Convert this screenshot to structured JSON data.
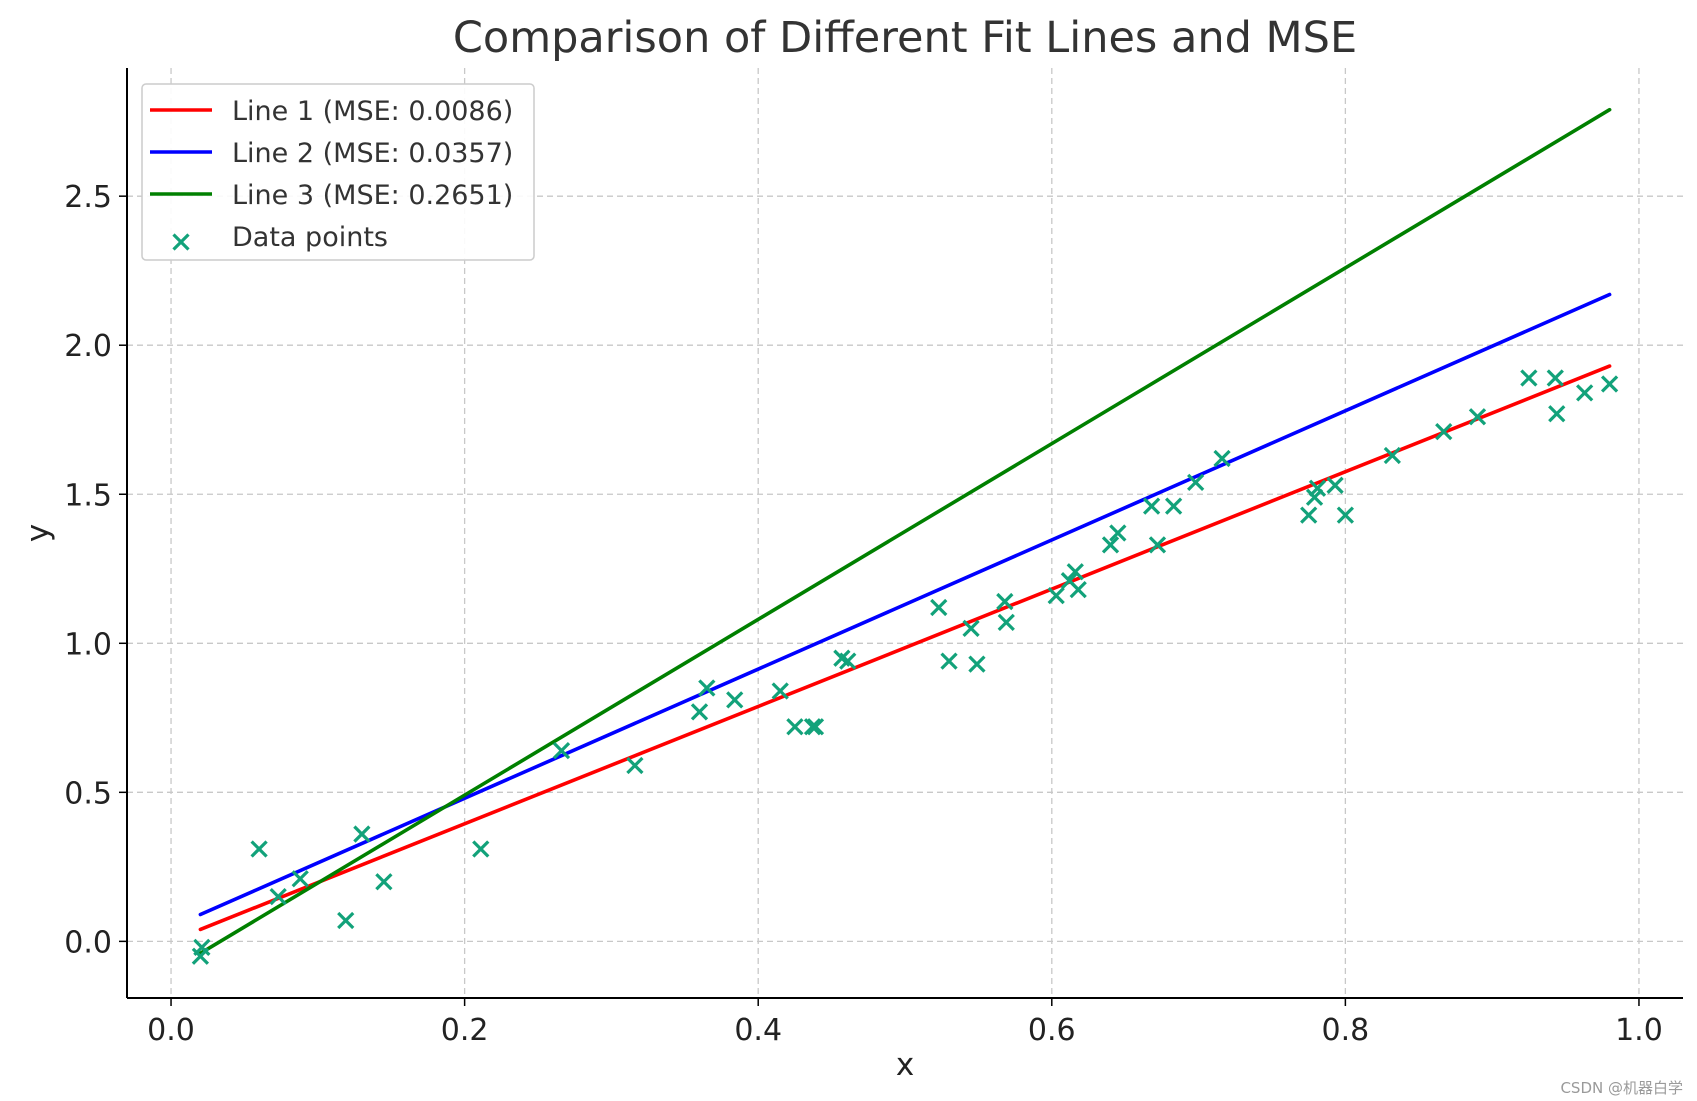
{
  "chart_data": {
    "type": "scatter",
    "title": "Comparison of Different Fit Lines and MSE",
    "xlabel": "x",
    "ylabel": "y",
    "xlim": [
      -0.03,
      1.03
    ],
    "ylim": [
      -0.19,
      2.93
    ],
    "xticks": [
      0.0,
      0.2,
      0.4,
      0.6,
      0.8,
      1.0
    ],
    "xtick_labels": [
      "0.0",
      "0.2",
      "0.4",
      "0.6",
      "0.8",
      "1.0"
    ],
    "yticks": [
      0.0,
      0.5,
      1.0,
      1.5,
      2.0,
      2.5
    ],
    "ytick_labels": [
      "0.0",
      "0.5",
      "1.0",
      "1.5",
      "2.0",
      "2.5"
    ],
    "grid": true,
    "legend_position": "top-left",
    "series": [
      {
        "name": "Line 1 (MSE: 0.0086)",
        "kind": "line",
        "color": "#ff0000",
        "x": [
          0.02,
          0.98
        ],
        "y": [
          0.04,
          1.93
        ]
      },
      {
        "name": "Line 2 (MSE: 0.0357)",
        "kind": "line",
        "color": "#0000ff",
        "x": [
          0.02,
          0.98
        ],
        "y": [
          0.09,
          2.17
        ]
      },
      {
        "name": "Line 3 (MSE: 0.2651)",
        "kind": "line",
        "color": "#008000",
        "x": [
          0.02,
          0.98
        ],
        "y": [
          -0.04,
          2.79
        ]
      },
      {
        "name": "Data points",
        "kind": "scatter",
        "color": "#12a27a",
        "marker": "x",
        "points": [
          [
            0.02,
            -0.05
          ],
          [
            0.021,
            -0.02
          ],
          [
            0.06,
            0.31
          ],
          [
            0.073,
            0.15
          ],
          [
            0.088,
            0.21
          ],
          [
            0.119,
            0.07
          ],
          [
            0.13,
            0.36
          ],
          [
            0.145,
            0.2
          ],
          [
            0.211,
            0.31
          ],
          [
            0.266,
            0.64
          ],
          [
            0.316,
            0.59
          ],
          [
            0.36,
            0.77
          ],
          [
            0.365,
            0.85
          ],
          [
            0.384,
            0.81
          ],
          [
            0.415,
            0.84
          ],
          [
            0.425,
            0.72
          ],
          [
            0.437,
            0.72
          ],
          [
            0.439,
            0.72
          ],
          [
            0.457,
            0.95
          ],
          [
            0.461,
            0.94
          ],
          [
            0.523,
            1.12
          ],
          [
            0.53,
            0.94
          ],
          [
            0.545,
            1.05
          ],
          [
            0.549,
            0.93
          ],
          [
            0.568,
            1.14
          ],
          [
            0.569,
            1.07
          ],
          [
            0.603,
            1.16
          ],
          [
            0.612,
            1.21
          ],
          [
            0.616,
            1.24
          ],
          [
            0.618,
            1.18
          ],
          [
            0.64,
            1.33
          ],
          [
            0.645,
            1.37
          ],
          [
            0.668,
            1.46
          ],
          [
            0.672,
            1.33
          ],
          [
            0.683,
            1.46
          ],
          [
            0.698,
            1.54
          ],
          [
            0.716,
            1.62
          ],
          [
            0.775,
            1.43
          ],
          [
            0.779,
            1.49
          ],
          [
            0.781,
            1.52
          ],
          [
            0.793,
            1.53
          ],
          [
            0.8,
            1.43
          ],
          [
            0.832,
            1.63
          ],
          [
            0.867,
            1.71
          ],
          [
            0.89,
            1.76
          ],
          [
            0.925,
            1.89
          ],
          [
            0.943,
            1.89
          ],
          [
            0.944,
            1.77
          ],
          [
            0.963,
            1.84
          ],
          [
            0.98,
            1.87
          ]
        ]
      }
    ]
  },
  "watermark": "CSDN @机器白学"
}
